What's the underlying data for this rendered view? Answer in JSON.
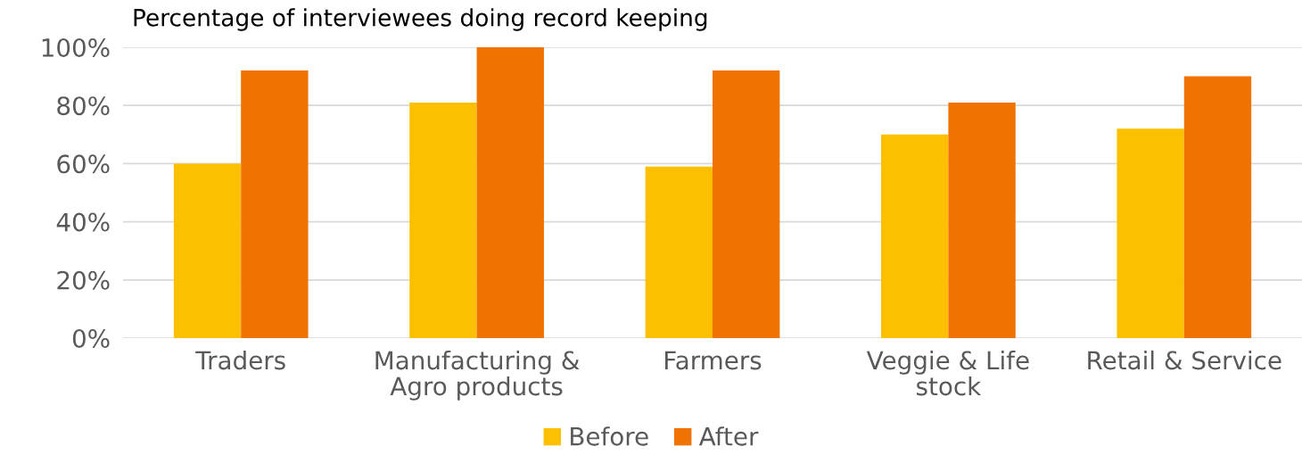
{
  "chart_data": {
    "type": "bar",
    "title": "Percentage of interviewees doing record keeping",
    "categories": [
      "Traders",
      "Manufacturing &\nAgro products",
      "Farmers",
      "Veggie & Life\nstock",
      "Retail & Service"
    ],
    "series": [
      {
        "name": "Before",
        "color": "#fcc000",
        "values": [
          60,
          81,
          59,
          70,
          72
        ]
      },
      {
        "name": "After",
        "color": "#f07300",
        "values": [
          92,
          100,
          92,
          81,
          90
        ]
      }
    ],
    "ylim": [
      0,
      100
    ],
    "yticks": [
      {
        "value": 0,
        "label": "0%"
      },
      {
        "value": 20,
        "label": "20%"
      },
      {
        "value": 40,
        "label": "40%"
      },
      {
        "value": 60,
        "label": "60%"
      },
      {
        "value": 80,
        "label": "80%"
      },
      {
        "value": 100,
        "label": "100%"
      }
    ],
    "grid": "y",
    "legend": "bottom"
  }
}
